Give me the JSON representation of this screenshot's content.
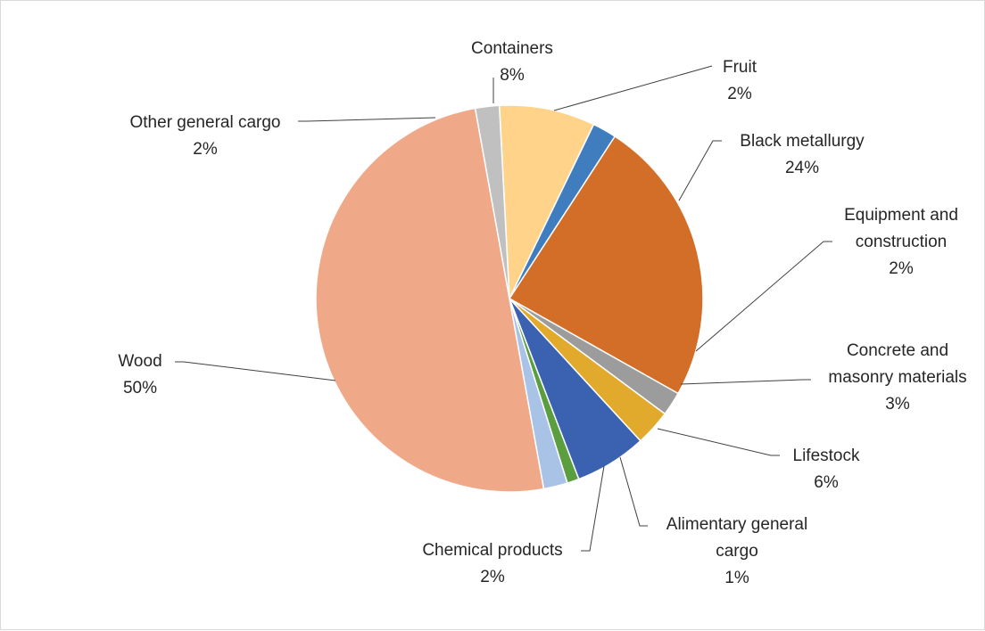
{
  "chart_data": {
    "type": "pie",
    "title": "",
    "categories": [
      "Containers",
      "Fruit",
      "Black metallurgy",
      "Equipment and construction",
      "Concrete and masonry materials",
      "Lifestock",
      "Alimentary general cargo",
      "Chemical products",
      "Wood",
      "Other general cargo"
    ],
    "values": [
      8,
      2,
      24,
      2,
      3,
      6,
      1,
      2,
      50,
      2
    ],
    "labels": [
      {
        "lines": [
          "Containers"
        ],
        "pct": "8%"
      },
      {
        "lines": [
          "Fruit"
        ],
        "pct": "2%"
      },
      {
        "lines": [
          "Black metallurgy"
        ],
        "pct": "24%"
      },
      {
        "lines": [
          "Equipment and",
          "construction"
        ],
        "pct": "2%"
      },
      {
        "lines": [
          "Concrete and",
          "masonry materials"
        ],
        "pct": "3%"
      },
      {
        "lines": [
          "Lifestock"
        ],
        "pct": "6%"
      },
      {
        "lines": [
          "Alimentary general",
          "cargo"
        ],
        "pct": "1%"
      },
      {
        "lines": [
          "Chemical products"
        ],
        "pct": "2%"
      },
      {
        "lines": [
          "Wood"
        ],
        "pct": "50%"
      },
      {
        "lines": [
          "Other general cargo"
        ],
        "pct": "2%"
      }
    ],
    "colors": [
      "#ffd38a",
      "#3f7dbf",
      "#d36e28",
      "#9c9c9c",
      "#e1aa2c",
      "#3a62b0",
      "#5b9e3f",
      "#a9c3e6",
      "#f0a988",
      "#c0c0c0"
    ],
    "start_angle_deg": -3,
    "legend": "none",
    "data_labels": "outside-with-leader-lines"
  }
}
